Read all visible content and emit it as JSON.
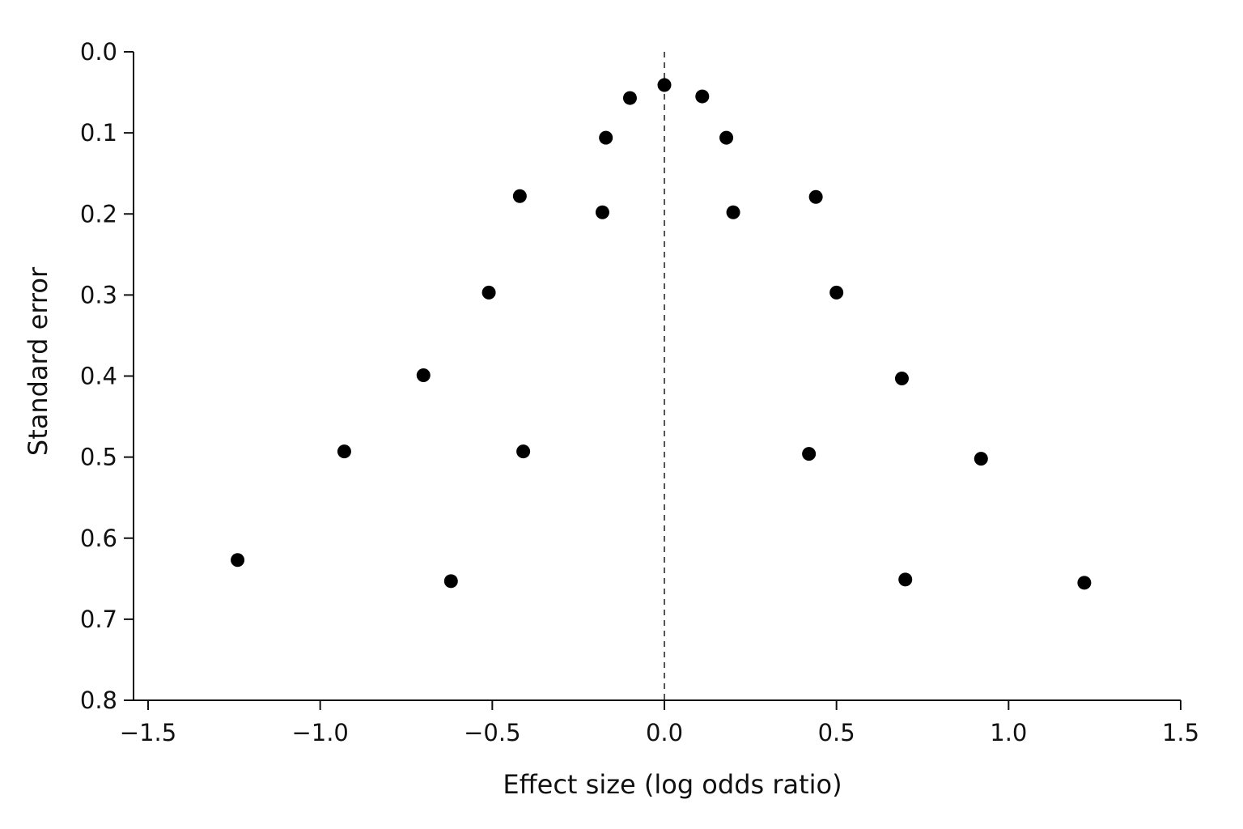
{
  "chart_data": {
    "type": "scatter",
    "title": "",
    "xlabel": "Effect size (log odds ratio)",
    "ylabel": "Standard error",
    "xlim": [
      -1.5,
      1.5
    ],
    "ylim": [
      0.0,
      0.8
    ],
    "y_inverted": true,
    "x_ticks": [
      -1.5,
      -1.0,
      -0.5,
      0.0,
      0.5,
      1.0,
      1.5
    ],
    "x_tick_labels": [
      "−1.5",
      "−1.0",
      "−0.5",
      "0.0",
      "0.5",
      "1.0",
      "1.5"
    ],
    "y_ticks": [
      0.0,
      0.1,
      0.2,
      0.3,
      0.4,
      0.5,
      0.6,
      0.7,
      0.8
    ],
    "y_tick_labels": [
      "0.0",
      "0.1",
      "0.2",
      "0.3",
      "0.4",
      "0.5",
      "0.6",
      "0.7",
      "0.8"
    ],
    "reference_line": {
      "x": 0.0,
      "style": "dashed",
      "color": "#555555"
    },
    "grid": false,
    "marker_color": "#000000",
    "points": [
      {
        "x": 0.0,
        "y": 0.041
      },
      {
        "x": -0.1,
        "y": 0.057
      },
      {
        "x": 0.11,
        "y": 0.055
      },
      {
        "x": -0.17,
        "y": 0.106
      },
      {
        "x": 0.18,
        "y": 0.106
      },
      {
        "x": -0.42,
        "y": 0.178
      },
      {
        "x": 0.44,
        "y": 0.179
      },
      {
        "x": -0.18,
        "y": 0.198
      },
      {
        "x": 0.2,
        "y": 0.198
      },
      {
        "x": -0.51,
        "y": 0.297
      },
      {
        "x": 0.5,
        "y": 0.297
      },
      {
        "x": -0.7,
        "y": 0.399
      },
      {
        "x": 0.69,
        "y": 0.403
      },
      {
        "x": -0.93,
        "y": 0.493
      },
      {
        "x": -0.41,
        "y": 0.493
      },
      {
        "x": 0.42,
        "y": 0.496
      },
      {
        "x": 0.92,
        "y": 0.502
      },
      {
        "x": -1.24,
        "y": 0.627
      },
      {
        "x": -0.62,
        "y": 0.653
      },
      {
        "x": 0.7,
        "y": 0.651
      },
      {
        "x": 1.22,
        "y": 0.655
      }
    ]
  }
}
